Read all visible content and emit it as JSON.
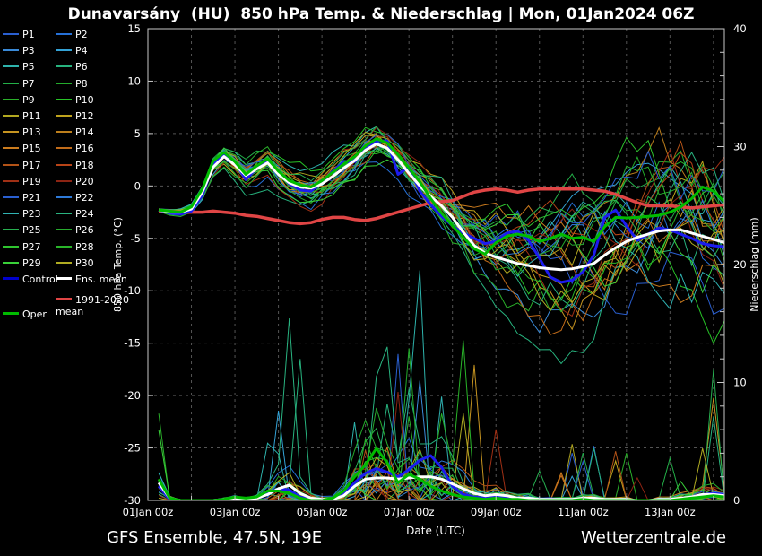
{
  "ui": {
    "title": "Dunavarsány  (HU)  850 hPa Temp. & Niederschlag | Mon, 01Jan2024 06Z",
    "footer_left": "GFS Ensemble, 47.5N, 19E",
    "footer_right": "Wetterzentrale.de",
    "colors": {
      "background": "#000000",
      "text": "#ffffff",
      "grid": "#545454",
      "axis": "#c8c8c8",
      "control": "#1c1cf0",
      "control_legend": "#0000cc",
      "ens_mean": "#ffffff",
      "clim_mean": "#e04545",
      "oper": "#00bb00"
    },
    "legend": {
      "left": [
        "P1",
        "P3",
        "P5",
        "P7",
        "P9",
        "P11",
        "P13",
        "P15",
        "P17",
        "P19",
        "P21",
        "P23",
        "P25",
        "P27",
        "P29",
        "Control",
        "Oper"
      ],
      "right": [
        "P2",
        "P4",
        "P6",
        "P8",
        "P10",
        "P12",
        "P14",
        "P16",
        "P18",
        "P20",
        "P22",
        "P24",
        "P26",
        "P28",
        "P30",
        "Ens. mean",
        "1991-2020 mean"
      ]
    }
  },
  "chart_data": {
    "type": "line",
    "title": "Dunavarsány  (HU)  850 hPa Temp. & Niederschlag | Mon, 01Jan2024 06Z",
    "axes": {
      "x": {
        "title": "Date (UTC)",
        "tick_labels": [
          "01Jan 00z",
          "03Jan 00z",
          "05Jan 00z",
          "07Jan 00z",
          "09Jan 00z",
          "11Jan 00z",
          "13Jan 00z"
        ],
        "tick_days": [
          0,
          2,
          4,
          6,
          8,
          10,
          12
        ],
        "total_days": 13.25,
        "grid_every_days": 1
      },
      "y_left": {
        "title": "850 hPa Temp. (°C)",
        "min": -30,
        "max": 15,
        "ticks": [
          15,
          10,
          5,
          0,
          -5,
          -10,
          -15,
          -20,
          -25,
          -30
        ],
        "grid": true
      },
      "y_right": {
        "title": "Niederschlag (mm)",
        "min": 0,
        "max": 40,
        "ticks": [
          0,
          10,
          20,
          30,
          40
        ],
        "minor_step": 2
      }
    },
    "time": {
      "start_label": "01Jan 06z",
      "end_label": "14Jan 06z",
      "step_hours": 6,
      "n": 53,
      "data_start_day": 0.25
    },
    "series": {
      "ens_mean_temp": [
        -2.3,
        -2.5,
        -2.5,
        -2.2,
        -0.6,
        1.8,
        2.8,
        2.0,
        1.0,
        1.6,
        2.2,
        1.1,
        0.3,
        -0.1,
        -0.2,
        0.2,
        0.9,
        1.7,
        2.4,
        3.4,
        4.0,
        3.6,
        2.5,
        1.2,
        0.0,
        -1.0,
        -1.9,
        -3.0,
        -4.4,
        -5.7,
        -6.4,
        -6.8,
        -7.1,
        -7.4,
        -7.6,
        -7.8,
        -7.9,
        -8.0,
        -7.9,
        -7.7,
        -7.4,
        -6.6,
        -5.9,
        -5.3,
        -4.9,
        -4.6,
        -4.3,
        -4.2,
        -4.2,
        -4.5,
        -4.8,
        -5.1,
        -5.4
      ],
      "control_temp": [
        -2.3,
        -2.6,
        -2.7,
        -2.4,
        -0.9,
        2.0,
        3.0,
        2.2,
        0.6,
        1.7,
        2.5,
        1.4,
        0.2,
        -0.4,
        -0.5,
        0.4,
        1.4,
        2.3,
        2.3,
        3.5,
        4.3,
        4.3,
        1.1,
        1.8,
        -0.5,
        -1.8,
        -2.9,
        -3.8,
        -4.5,
        -5.0,
        -5.5,
        -5.3,
        -4.5,
        -4.3,
        -5.2,
        -6.9,
        -8.7,
        -9.2,
        -9.0,
        -8.2,
        -6.6,
        -3.0,
        -2.3,
        -3.8,
        -5.2,
        -4.6,
        -4.0,
        -4.2,
        -4.6,
        -5.0,
        -5.5,
        -5.7,
        -5.8
      ],
      "oper_temp": [
        -2.3,
        -2.4,
        -2.5,
        -2.0,
        -0.3,
        2.4,
        3.2,
        2.3,
        1.1,
        1.9,
        2.6,
        1.4,
        0.5,
        0.1,
        -0.1,
        0.5,
        1.3,
        2.1,
        2.8,
        3.8,
        4.5,
        4.1,
        3.0,
        1.7,
        0.4,
        -1.2,
        -2.6,
        -3.8,
        -4.9,
        -6.0,
        -6.5,
        -5.4,
        -4.8,
        -4.6,
        -4.8,
        -5.3,
        -5.0,
        -4.6,
        -5.0,
        -4.9,
        -5.3,
        -3.9,
        -3.0,
        -3.05,
        -3.0,
        -2.9,
        -2.8,
        -2.5,
        -2.0,
        -1.2,
        -0.1,
        -0.5,
        -1.5
      ],
      "clim_mean_temp": [
        -2.4,
        -2.4,
        -2.5,
        -2.5,
        -2.5,
        -2.4,
        -2.5,
        -2.6,
        -2.8,
        -2.9,
        -3.1,
        -3.3,
        -3.5,
        -3.6,
        -3.5,
        -3.2,
        -3.0,
        -3.0,
        -3.2,
        -3.3,
        -3.1,
        -2.8,
        -2.5,
        -2.2,
        -1.9,
        -1.6,
        -1.5,
        -1.4,
        -1.0,
        -0.6,
        -0.4,
        -0.3,
        -0.4,
        -0.6,
        -0.4,
        -0.3,
        -0.3,
        -0.3,
        -0.3,
        -0.3,
        -0.4,
        -0.5,
        -0.8,
        -1.2,
        -1.6,
        -1.9,
        -1.9,
        -1.9,
        -2.0,
        -2.1,
        -2.0,
        -1.9,
        -1.8
      ],
      "ens_mean_precip": [
        1.5,
        0.2,
        0.0,
        0.0,
        0.0,
        0.0,
        0.1,
        0.2,
        0.1,
        0.2,
        0.5,
        1.0,
        1.3,
        0.6,
        0.2,
        0.1,
        0.1,
        0.4,
        1.2,
        1.8,
        1.9,
        1.9,
        1.8,
        1.9,
        2.0,
        2.0,
        1.8,
        1.4,
        1.0,
        0.6,
        0.4,
        0.5,
        0.4,
        0.2,
        0.2,
        0.1,
        0.1,
        0.1,
        0.1,
        0.2,
        0.2,
        0.1,
        0.1,
        0.1,
        0.0,
        0.0,
        0.1,
        0.1,
        0.2,
        0.3,
        0.5,
        0.5,
        0.4
      ],
      "control_precip": [
        1.2,
        0.1,
        0.0,
        0.0,
        0.0,
        0.0,
        0.1,
        0.2,
        0.1,
        0.2,
        0.6,
        1.0,
        0.9,
        0.3,
        0.1,
        0.0,
        0.1,
        0.5,
        1.5,
        2.3,
        2.7,
        2.4,
        2.0,
        2.6,
        3.4,
        3.8,
        2.8,
        1.2,
        0.5,
        0.3,
        0.2,
        0.3,
        0.2,
        0.1,
        0.0,
        0.0,
        0.0,
        0.0,
        0.0,
        0.1,
        0.1,
        0.0,
        0.0,
        0.0,
        0.0,
        0.0,
        0.0,
        0.0,
        0.1,
        0.3,
        0.5,
        0.6,
        0.5
      ],
      "oper_precip": [
        1.8,
        0.2,
        0.0,
        0.0,
        0.0,
        0.0,
        0.1,
        0.3,
        0.2,
        0.3,
        0.8,
        0.8,
        0.6,
        0.2,
        0.0,
        0.0,
        0.2,
        0.8,
        2.0,
        3.0,
        4.4,
        3.2,
        1.5,
        2.2,
        1.8,
        1.2,
        0.8,
        0.5,
        0.3,
        0.2,
        0.1,
        0.2,
        0.1,
        0.1,
        0.0,
        0.0,
        0.0,
        0.0,
        0.0,
        0.1,
        0.0,
        0.0,
        0.0,
        0.0,
        0.0,
        0.0,
        0.0,
        0.0,
        0.1,
        0.2,
        0.3,
        0.4,
        0.3
      ]
    },
    "members": {
      "count": 30,
      "labels": [
        "P1",
        "P2",
        "P3",
        "P4",
        "P5",
        "P6",
        "P7",
        "P8",
        "P9",
        "P10",
        "P11",
        "P12",
        "P13",
        "P14",
        "P15",
        "P16",
        "P17",
        "P18",
        "P19",
        "P20",
        "P21",
        "P22",
        "P23",
        "P24",
        "P25",
        "P26",
        "P27",
        "P28",
        "P29",
        "P30"
      ],
      "colors": [
        "#2a5fd0",
        "#2671d8",
        "#3a8ad8",
        "#34a3d6",
        "#2eb3ac",
        "#27b37e",
        "#23b048",
        "#23ab2c",
        "#2ab02a",
        "#27c427",
        "#b2a820",
        "#bfa31d",
        "#c69420",
        "#bd7f1c",
        "#cc7c1e",
        "#c26c1a",
        "#b35317",
        "#b84417",
        "#a03015",
        "#8c2413",
        "#2a5fd0",
        "#2e7ad8",
        "#30b3b3",
        "#29b380",
        "#27b050",
        "#27ab2e",
        "#2fc42f",
        "#29b429",
        "#39d139",
        "#b0ac22"
      ],
      "temp_spread": [
        0.25,
        0.3,
        0.35,
        0.4,
        0.5,
        0.6,
        0.7,
        0.8,
        0.9,
        1.0,
        1.0,
        1.1,
        1.2,
        1.2,
        1.2,
        1.2,
        1.2,
        1.3,
        1.3,
        1.3,
        1.3,
        1.2,
        1.2,
        1.2,
        1.4,
        1.6,
        1.8,
        2.0,
        2.2,
        2.4,
        2.6,
        2.8,
        3.0,
        3.2,
        3.4,
        3.6,
        3.8,
        4.0,
        4.1,
        4.2,
        4.4,
        4.5,
        4.6,
        4.7,
        4.8,
        4.8,
        4.9,
        4.9,
        5.0,
        5.0,
        5.0,
        5.0,
        5.0
      ],
      "forced_precip_spikes": [
        {
          "member": 3,
          "index": 11,
          "mm": 7.6
        },
        {
          "member": 23,
          "index": 20,
          "mm": 10.5
        },
        {
          "member": 7,
          "index": 23,
          "mm": 12.9
        },
        {
          "member": 4,
          "index": 24,
          "mm": 19.5
        },
        {
          "member": 22,
          "index": 26,
          "mm": 8.8
        },
        {
          "member": 23,
          "index": 40,
          "mm": 4.4
        },
        {
          "member": 29,
          "index": 50,
          "mm": 4.4
        }
      ],
      "seed_base": 12345,
      "seed_step": 991
    }
  }
}
